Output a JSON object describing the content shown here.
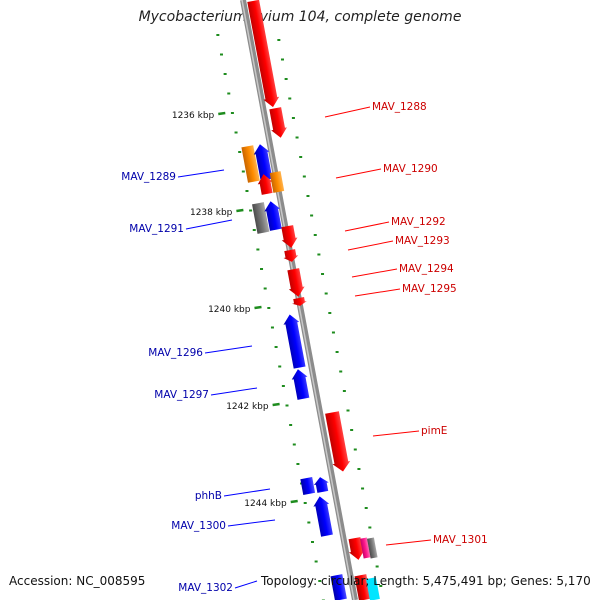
{
  "title": "Mycobacterium avium 104, complete genome",
  "footer": {
    "accession_label": "Accession:",
    "accession": "NC_008595",
    "topology_label": "Topology:",
    "topology": "circular",
    "length_label": "Length:",
    "length": "5,475,491 bp",
    "genes_label": "Genes:",
    "genes": "5,170"
  },
  "colors": {
    "forward": "#ff0000",
    "reverse": "#0000ff",
    "orange": "#ff8c00",
    "gray": "#777777",
    "pink": "#ff1a8c",
    "cyan": "#00e5ff",
    "backbone": "#8c8c8c",
    "ticks": "#1e8c1e"
  },
  "ticks": [
    "1236 kbp",
    "1238 kbp",
    "1240 kbp",
    "1242 kbp",
    "1244 kbp"
  ],
  "labels": {
    "right": [
      "MAV_1288",
      "MAV_1290",
      "MAV_1292",
      "MAV_1293",
      "MAV_1294",
      "MAV_1295",
      "pimE",
      "MAV_1301"
    ],
    "left": [
      "MAV_1289",
      "MAV_1291",
      "MAV_1296",
      "MAV_1297",
      "phhB",
      "MAV_1300",
      "MAV_1302"
    ]
  }
}
